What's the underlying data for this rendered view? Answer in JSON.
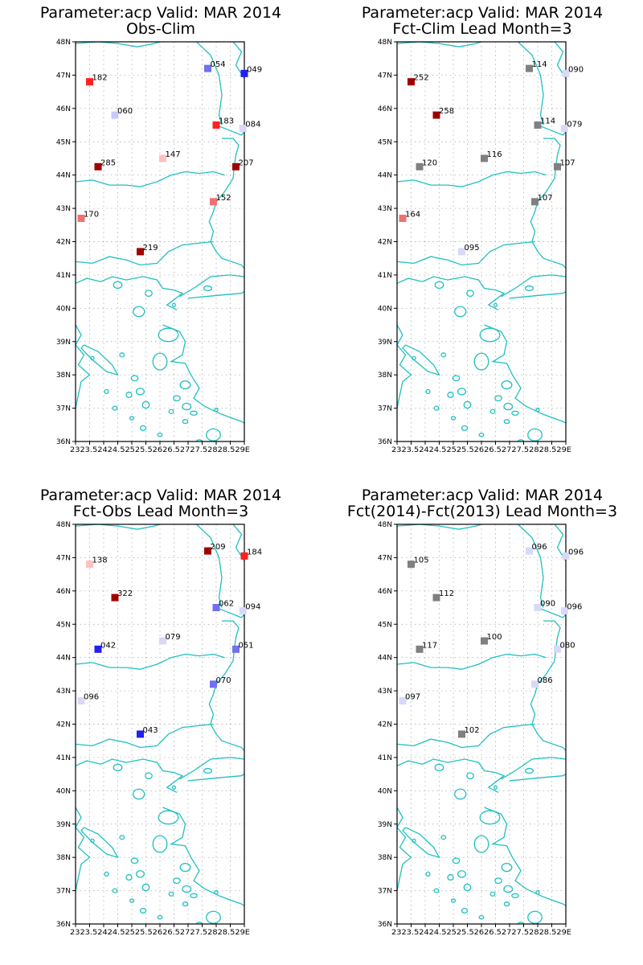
{
  "panels": [
    {
      "title_line1": "Parameter:acp Valid: MAR 2014",
      "title_line2": "Obs-Clim",
      "stations": [
        {
          "lon": 23.5,
          "lat": 46.8,
          "label": "182",
          "color": "#ff2020"
        },
        {
          "lon": 24.4,
          "lat": 45.8,
          "label": "060",
          "color": "#c8c8f8"
        },
        {
          "lon": 27.7,
          "lat": 47.2,
          "label": "054",
          "color": "#7070f0"
        },
        {
          "lon": 29.0,
          "lat": 47.05,
          "label": "049",
          "color": "#2020f0"
        },
        {
          "lon": 28.0,
          "lat": 45.5,
          "label": "183",
          "color": "#ff2020"
        },
        {
          "lon": 28.95,
          "lat": 45.4,
          "label": "084",
          "color": "#d8d8f8"
        },
        {
          "lon": 26.1,
          "lat": 44.5,
          "label": "147",
          "color": "#ffc0c0"
        },
        {
          "lon": 23.8,
          "lat": 44.25,
          "label": "285",
          "color": "#a00000"
        },
        {
          "lon": 28.7,
          "lat": 44.25,
          "label": "207",
          "color": "#a00000"
        },
        {
          "lon": 27.9,
          "lat": 43.2,
          "label": "152",
          "color": "#f07070"
        },
        {
          "lon": 23.2,
          "lat": 42.7,
          "label": "170",
          "color": "#f07070"
        },
        {
          "lon": 25.3,
          "lat": 41.7,
          "label": "219",
          "color": "#a00000"
        }
      ]
    },
    {
      "title_line1": "Parameter:acp Valid: MAR 2014",
      "title_line2": "Fct-Clim Lead Month=3",
      "stations": [
        {
          "lon": 23.5,
          "lat": 46.8,
          "label": "252",
          "color": "#a00000"
        },
        {
          "lon": 24.4,
          "lat": 45.8,
          "label": "258",
          "color": "#a00000"
        },
        {
          "lon": 27.7,
          "lat": 47.2,
          "label": "114",
          "color": "#808080"
        },
        {
          "lon": 29.0,
          "lat": 47.05,
          "label": "090",
          "color": "#d8d8f8"
        },
        {
          "lon": 28.0,
          "lat": 45.5,
          "label": "114",
          "color": "#808080"
        },
        {
          "lon": 28.95,
          "lat": 45.4,
          "label": "079",
          "color": "#d8d8f8"
        },
        {
          "lon": 26.1,
          "lat": 44.5,
          "label": "116",
          "color": "#808080"
        },
        {
          "lon": 23.8,
          "lat": 44.25,
          "label": "120",
          "color": "#808080"
        },
        {
          "lon": 28.7,
          "lat": 44.25,
          "label": "107",
          "color": "#808080"
        },
        {
          "lon": 27.9,
          "lat": 43.2,
          "label": "107",
          "color": "#808080"
        },
        {
          "lon": 23.2,
          "lat": 42.7,
          "label": "164",
          "color": "#f07070"
        },
        {
          "lon": 25.3,
          "lat": 41.7,
          "label": "095",
          "color": "#d8d8f8"
        }
      ]
    },
    {
      "title_line1": "Parameter:acp Valid: MAR 2014",
      "title_line2": "Fct-Obs Lead Month=3",
      "stations": [
        {
          "lon": 23.5,
          "lat": 46.8,
          "label": "138",
          "color": "#ffc0c0"
        },
        {
          "lon": 24.4,
          "lat": 45.8,
          "label": "322",
          "color": "#a00000"
        },
        {
          "lon": 27.7,
          "lat": 47.2,
          "label": "209",
          "color": "#a00000"
        },
        {
          "lon": 29.0,
          "lat": 47.05,
          "label": "184",
          "color": "#ff2020"
        },
        {
          "lon": 28.0,
          "lat": 45.5,
          "label": "062",
          "color": "#7070f0"
        },
        {
          "lon": 28.95,
          "lat": 45.4,
          "label": "094",
          "color": "#d8d8f8"
        },
        {
          "lon": 26.1,
          "lat": 44.5,
          "label": "079",
          "color": "#d8d8f8"
        },
        {
          "lon": 23.8,
          "lat": 44.25,
          "label": "042",
          "color": "#2020f0"
        },
        {
          "lon": 28.7,
          "lat": 44.25,
          "label": "051",
          "color": "#7070f0"
        },
        {
          "lon": 27.9,
          "lat": 43.2,
          "label": "070",
          "color": "#7070f0"
        },
        {
          "lon": 23.2,
          "lat": 42.7,
          "label": "096",
          "color": "#d8d8f8"
        },
        {
          "lon": 25.3,
          "lat": 41.7,
          "label": "043",
          "color": "#2020f0"
        }
      ]
    },
    {
      "title_line1": "Parameter:acp Valid: MAR 2014",
      "title_line2": "Fct(2014)-Fct(2013) Lead Month=3",
      "stations": [
        {
          "lon": 23.5,
          "lat": 46.8,
          "label": "105",
          "color": "#808080"
        },
        {
          "lon": 24.4,
          "lat": 45.8,
          "label": "112",
          "color": "#808080"
        },
        {
          "lon": 27.7,
          "lat": 47.2,
          "label": "096",
          "color": "#d8d8f8"
        },
        {
          "lon": 29.0,
          "lat": 47.05,
          "label": "096",
          "color": "#d8d8f8"
        },
        {
          "lon": 28.0,
          "lat": 45.5,
          "label": "090",
          "color": "#d8d8f8"
        },
        {
          "lon": 28.95,
          "lat": 45.4,
          "label": "096",
          "color": "#d8d8f8"
        },
        {
          "lon": 26.1,
          "lat": 44.5,
          "label": "100",
          "color": "#808080"
        },
        {
          "lon": 23.8,
          "lat": 44.25,
          "label": "117",
          "color": "#808080"
        },
        {
          "lon": 28.7,
          "lat": 44.25,
          "label": "080",
          "color": "#d8d8f8"
        },
        {
          "lon": 27.9,
          "lat": 43.2,
          "label": "086",
          "color": "#d8d8f8"
        },
        {
          "lon": 23.2,
          "lat": 42.7,
          "label": "097",
          "color": "#d8d8f8"
        },
        {
          "lon": 25.3,
          "lat": 41.7,
          "label": "102",
          "color": "#808080"
        }
      ]
    }
  ],
  "lat_ticks": [
    "36N",
    "37N",
    "38N",
    "39N",
    "40N",
    "41N",
    "42N",
    "43N",
    "44N",
    "45N",
    "46N",
    "47N",
    "48N"
  ],
  "lon_tick_text": "2323.52424.52525.52626.52727.52828.529E",
  "coast_color": "#20c0c0",
  "grid_color": "#a0a0a0"
}
